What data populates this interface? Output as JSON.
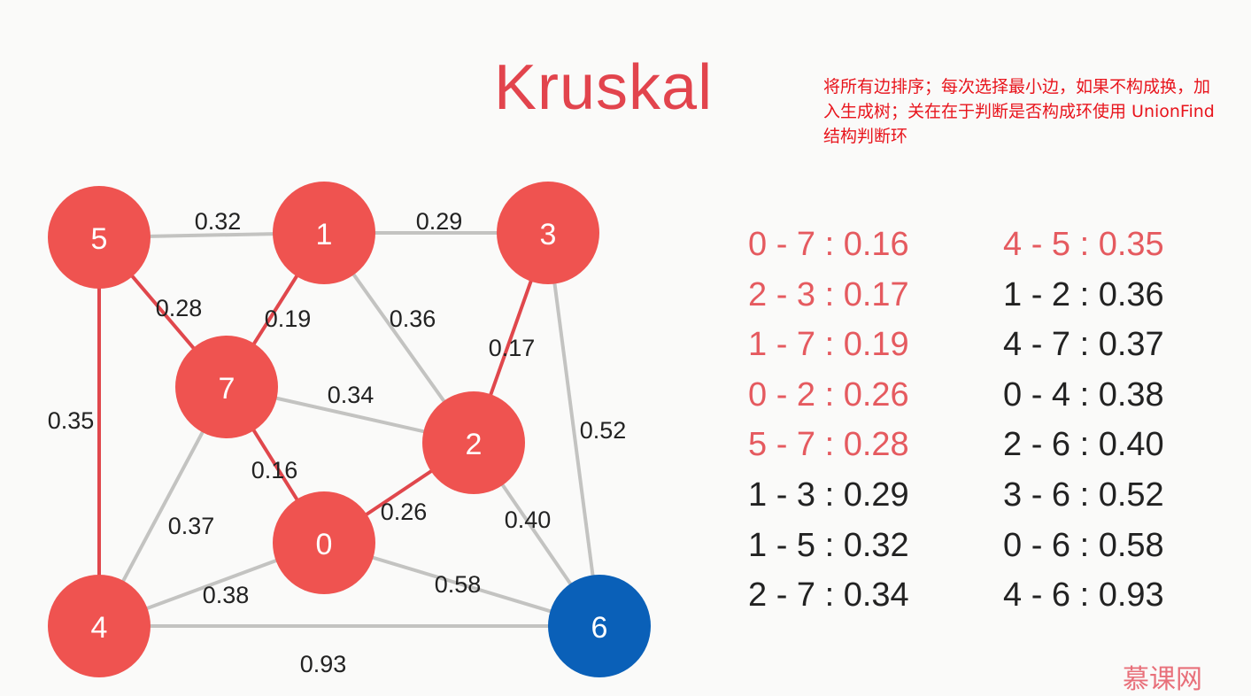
{
  "title": "Kruskal",
  "note": {
    "lines": [
      "将所有边排序；每次选择最小边，如果不构成换，加",
      "入生成树；关在在于判断是否构成环使用 UnionFind",
      "结构判断环"
    ]
  },
  "colors": {
    "title": "#e2444d",
    "note": "#e8141c",
    "node": "#ef5350",
    "node_special": "#0a60b8",
    "mst_edge": "#e0474c",
    "edge": "#c3c3c1"
  },
  "graph": {
    "nodes": [
      {
        "id": "0",
        "special": false
      },
      {
        "id": "1",
        "special": false
      },
      {
        "id": "2",
        "special": false
      },
      {
        "id": "3",
        "special": false
      },
      {
        "id": "4",
        "special": false
      },
      {
        "id": "5",
        "special": false
      },
      {
        "id": "6",
        "special": true
      },
      {
        "id": "7",
        "special": false
      }
    ],
    "edges": [
      {
        "from": "5",
        "to": "1",
        "weight": "0.32",
        "mst": false
      },
      {
        "from": "1",
        "to": "3",
        "weight": "0.29",
        "mst": false
      },
      {
        "from": "5",
        "to": "7",
        "weight": "0.28",
        "mst": true
      },
      {
        "from": "1",
        "to": "7",
        "weight": "0.19",
        "mst": true
      },
      {
        "from": "1",
        "to": "2",
        "weight": "0.36",
        "mst": false
      },
      {
        "from": "3",
        "to": "2",
        "weight": "0.17",
        "mst": true
      },
      {
        "from": "5",
        "to": "4",
        "weight": "0.35",
        "mst": true
      },
      {
        "from": "7",
        "to": "2",
        "weight": "0.34",
        "mst": false
      },
      {
        "from": "3",
        "to": "6",
        "weight": "0.52",
        "mst": false
      },
      {
        "from": "7",
        "to": "0",
        "weight": "0.16",
        "mst": true
      },
      {
        "from": "0",
        "to": "2",
        "weight": "0.26",
        "mst": true
      },
      {
        "from": "7",
        "to": "4",
        "weight": "0.37",
        "mst": false
      },
      {
        "from": "2",
        "to": "6",
        "weight": "0.40",
        "mst": false
      },
      {
        "from": "0",
        "to": "6",
        "weight": "0.58",
        "mst": false
      },
      {
        "from": "0",
        "to": "4",
        "weight": "0.38",
        "mst": false
      },
      {
        "from": "4",
        "to": "6",
        "weight": "0.93",
        "mst": false
      }
    ]
  },
  "sorted_edges": {
    "column1": [
      {
        "text": "0 - 7 : 0.16",
        "selected": true
      },
      {
        "text": "2 - 3 : 0.17",
        "selected": true
      },
      {
        "text": "1 - 7 : 0.19",
        "selected": true
      },
      {
        "text": "0 - 2 : 0.26",
        "selected": true
      },
      {
        "text": "5 - 7 : 0.28",
        "selected": true
      },
      {
        "text": "1 - 3 : 0.29",
        "selected": false
      },
      {
        "text": "1 - 5 : 0.32",
        "selected": false
      },
      {
        "text": "2 - 7 : 0.34",
        "selected": false
      }
    ],
    "column2": [
      {
        "text": "4 - 5 : 0.35",
        "selected": true
      },
      {
        "text": "1 - 2 : 0.36",
        "selected": false
      },
      {
        "text": "4 - 7 : 0.37",
        "selected": false
      },
      {
        "text": "0 - 4 : 0.38",
        "selected": false
      },
      {
        "text": "2 - 6 : 0.40",
        "selected": false
      },
      {
        "text": "3 - 6 : 0.52",
        "selected": false
      },
      {
        "text": "0 - 6 : 0.58",
        "selected": false
      },
      {
        "text": "4 - 6 : 0.93",
        "selected": false
      }
    ]
  },
  "watermark": "慕课网"
}
